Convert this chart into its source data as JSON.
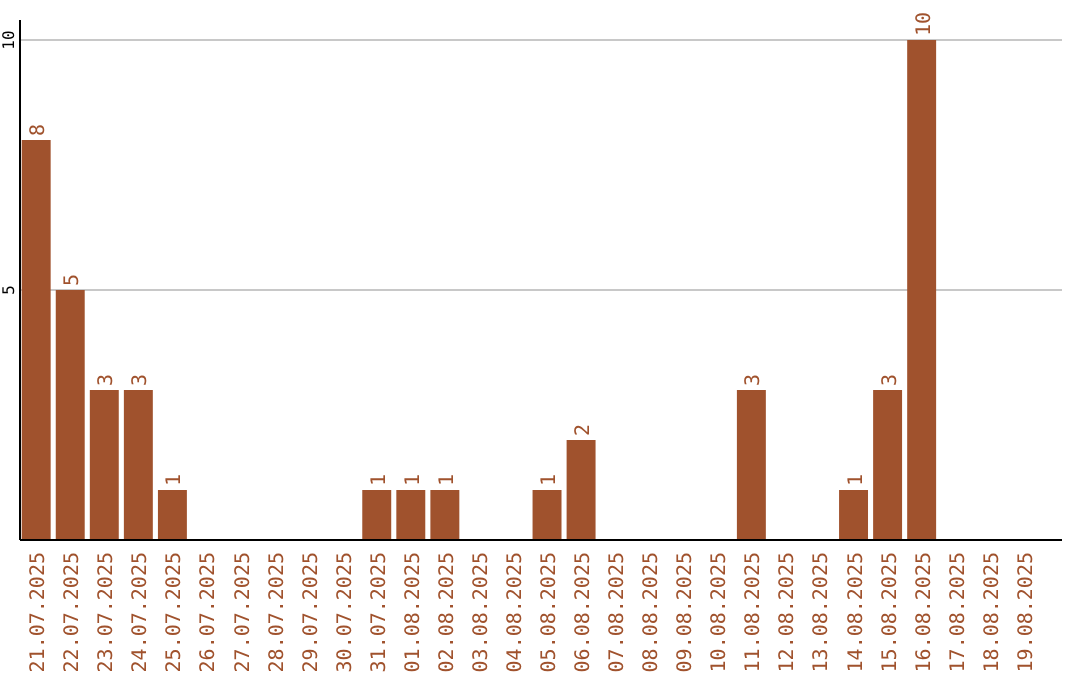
{
  "chart_data": {
    "type": "bar",
    "categories": [
      "21.07.2025",
      "22.07.2025",
      "23.07.2025",
      "24.07.2025",
      "25.07.2025",
      "26.07.2025",
      "27.07.2025",
      "28.07.2025",
      "29.07.2025",
      "30.07.2025",
      "31.07.2025",
      "01.08.2025",
      "02.08.2025",
      "03.08.2025",
      "04.08.2025",
      "05.08.2025",
      "06.08.2025",
      "07.08.2025",
      "08.08.2025",
      "09.08.2025",
      "10.08.2025",
      "11.08.2025",
      "12.08.2025",
      "13.08.2025",
      "14.08.2025",
      "15.08.2025",
      "16.08.2025",
      "17.08.2025",
      "18.08.2025",
      "19.08.2025"
    ],
    "values": [
      8,
      5,
      3,
      3,
      1,
      0,
      0,
      0,
      0,
      0,
      1,
      1,
      1,
      0,
      0,
      1,
      2,
      0,
      0,
      0,
      0,
      3,
      0,
      0,
      1,
      3,
      10,
      0,
      0,
      0
    ],
    "value_labels": [
      "8",
      "5",
      "3",
      "3",
      "1",
      null,
      null,
      null,
      null,
      null,
      "1",
      "1",
      "1",
      null,
      null,
      "1",
      "2",
      null,
      null,
      null,
      null,
      "3",
      null,
      null,
      "1",
      "3",
      "10",
      null,
      null,
      null
    ],
    "color": "#a0522d",
    "ylim": [
      0,
      10.4
    ],
    "yticks": [
      5,
      10
    ],
    "grid": "y"
  }
}
